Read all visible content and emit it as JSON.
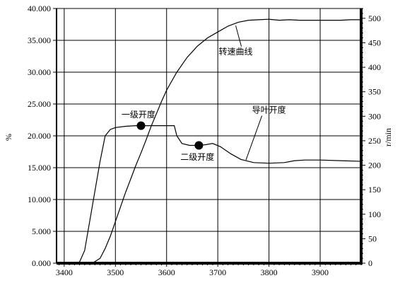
{
  "chart_data": {
    "type": "line",
    "x_ticks": [
      3400,
      3500,
      3600,
      3700,
      3800,
      3900
    ],
    "xlim": [
      3385,
      3980
    ],
    "left_axis": {
      "label": "%",
      "ylim": [
        0,
        40
      ],
      "tick_values": [
        0,
        5,
        10,
        15,
        20,
        25,
        30,
        35,
        40
      ],
      "tick_labels": [
        "0.000",
        "5.000",
        "10.000",
        "15.000",
        "20.000",
        "25.000",
        "30.000",
        "35.000",
        "40.000"
      ]
    },
    "right_axis": {
      "label": "r/min",
      "ylim": [
        0,
        520
      ],
      "tick_values": [
        0,
        50,
        100,
        150,
        200,
        250,
        300,
        350,
        400,
        450,
        500
      ],
      "tick_labels": [
        "0",
        "50",
        "100",
        "150",
        "200",
        "250",
        "300",
        "350",
        "400",
        "450",
        "500"
      ]
    },
    "grid": true,
    "series": [
      {
        "name": "导叶开度",
        "axis": "left",
        "points": [
          [
            3385,
            0
          ],
          [
            3420,
            0
          ],
          [
            3430,
            0.2
          ],
          [
            3440,
            2
          ],
          [
            3455,
            9
          ],
          [
            3470,
            16
          ],
          [
            3480,
            20
          ],
          [
            3490,
            21
          ],
          [
            3500,
            21.3
          ],
          [
            3520,
            21.5
          ],
          [
            3540,
            21.6
          ],
          [
            3560,
            21.6
          ],
          [
            3590,
            21.6
          ],
          [
            3615,
            21.6
          ],
          [
            3620,
            20
          ],
          [
            3630,
            18.8
          ],
          [
            3645,
            18.5
          ],
          [
            3660,
            18.5
          ],
          [
            3675,
            18.6
          ],
          [
            3690,
            18.8
          ],
          [
            3705,
            18.3
          ],
          [
            3725,
            17.2
          ],
          [
            3745,
            16.3
          ],
          [
            3770,
            15.8
          ],
          [
            3800,
            15.7
          ],
          [
            3830,
            15.8
          ],
          [
            3850,
            16.1
          ],
          [
            3870,
            16.2
          ],
          [
            3900,
            16.2
          ],
          [
            3940,
            16.1
          ],
          [
            3980,
            16
          ]
        ]
      },
      {
        "name": "转速曲线",
        "axis": "right",
        "points": [
          [
            3385,
            0
          ],
          [
            3455,
            0
          ],
          [
            3470,
            10
          ],
          [
            3480,
            30
          ],
          [
            3490,
            55
          ],
          [
            3500,
            85
          ],
          [
            3510,
            115
          ],
          [
            3520,
            145
          ],
          [
            3530,
            172
          ],
          [
            3540,
            200
          ],
          [
            3550,
            225
          ],
          [
            3560,
            252
          ],
          [
            3570,
            280
          ],
          [
            3580,
            305
          ],
          [
            3590,
            330
          ],
          [
            3600,
            353
          ],
          [
            3620,
            390
          ],
          [
            3640,
            420
          ],
          [
            3660,
            443
          ],
          [
            3680,
            460
          ],
          [
            3700,
            472
          ],
          [
            3720,
            484
          ],
          [
            3740,
            492
          ],
          [
            3760,
            496
          ],
          [
            3780,
            497
          ],
          [
            3800,
            498
          ],
          [
            3820,
            496
          ],
          [
            3840,
            497
          ],
          [
            3860,
            496
          ],
          [
            3880,
            496
          ],
          [
            3900,
            496
          ],
          [
            3940,
            496
          ],
          [
            3960,
            497
          ],
          [
            3980,
            497
          ]
        ]
      }
    ],
    "markers": [
      {
        "label": "一级开度",
        "x": 3550,
        "y": 21.6
      },
      {
        "label": "二级开度",
        "x": 3663,
        "y": 18.5
      }
    ],
    "annotations": [
      {
        "text": "转速曲线",
        "target": "转速曲线",
        "at_x": 3735,
        "at_y_right": 485,
        "text_x": 3735,
        "text_y_left": 32.8
      },
      {
        "text": "导叶开度",
        "target": "导叶开度",
        "at_x": 3755,
        "at_y_left": 16.2,
        "text_x": 3800,
        "text_y_left": 23.6
      },
      {
        "text": "一级开度",
        "target": "一级开度",
        "text_x": 3545,
        "text_y_left": 22.9
      },
      {
        "text": "二级开度",
        "target": "二级开度",
        "text_x": 3660,
        "text_y_left": 16.2
      }
    ]
  }
}
